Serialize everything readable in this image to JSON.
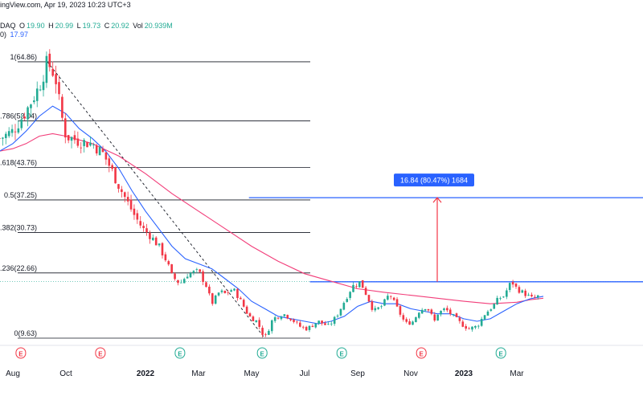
{
  "header": {
    "line1": "ingView.com, Apr 19, 2023 10:23 UTC+3",
    "symbol_suffix": "DAQ",
    "ohlc": [
      {
        "key": "O",
        "value": "19.90"
      },
      {
        "key": "H",
        "value": "20.99"
      },
      {
        "key": "L",
        "value": "19.73"
      },
      {
        "key": "C",
        "value": "20.92"
      },
      {
        "key": "Vol",
        "value": "20.939M"
      }
    ],
    "ma_prefix": "0)",
    "ma_value": "17.97"
  },
  "colors": {
    "up": "#22ab94",
    "down": "#f23645",
    "ma_fast": "#2962ff",
    "ma_slow": "#f23e7a",
    "fib_line": "#131722",
    "target_line": "#2962ff",
    "arrow": "#f23645",
    "measure_box": "#2962ff",
    "earnings_e": "#f23645",
    "earnings_e_up": "#22ab94"
  },
  "measure_label": "16.84 (80.47%) 1684",
  "earnings": [
    {
      "label": "E",
      "type": "down",
      "month_pos": 0.3
    },
    {
      "label": "E",
      "type": "down",
      "month_pos": 3.3
    },
    {
      "label": "E",
      "type": "up",
      "month_pos": 6.3
    },
    {
      "label": "E",
      "type": "up",
      "month_pos": 9.4
    },
    {
      "label": "E",
      "type": "up",
      "month_pos": 12.4
    },
    {
      "label": "E",
      "type": "down",
      "month_pos": 15.4
    },
    {
      "label": "E",
      "type": "up",
      "month_pos": 18.4
    }
  ],
  "chart_data": {
    "type": "candlestick",
    "x_axis": {
      "ticks": [
        "Aug",
        "Oct",
        "2022",
        "Mar",
        "May",
        "Jul",
        "Sep",
        "Nov",
        "2023",
        "Mar"
      ],
      "tick_month_pos": [
        0,
        2,
        5,
        7,
        9,
        11,
        13,
        15,
        17,
        19
      ],
      "note": "month_pos = months since Aug 2021"
    },
    "y_range": [
      9.63,
      68
    ],
    "fib_levels": [
      {
        "label": "1(64.86)",
        "value": 64.86
      },
      {
        "label": ".786(53.04)",
        "value": 53.04
      },
      {
        "label": ".618(43.76)",
        "value": 43.76
      },
      {
        "label": "0.5(37.25)",
        "value": 37.25
      },
      {
        "label": ".382(30.73)",
        "value": 30.73
      },
      {
        "label": ".236(22.66)",
        "value": 22.66
      },
      {
        "label": "0(9.63)",
        "value": 9.63
      }
    ],
    "horizontal_lines": [
      {
        "name": "target",
        "value": 37.7,
        "from_month": 8.9
      },
      {
        "name": "resistance",
        "value": 20.9,
        "from_month": 11.2
      }
    ],
    "last_price": 20.92,
    "trend_line": {
      "from": {
        "month_pos": 1.3,
        "value": 64.86
      },
      "to": {
        "month_pos": 9.5,
        "value": 9.63
      }
    },
    "measure_arrow": {
      "month_pos": 16.0,
      "from": 20.9,
      "to": 37.7,
      "change": 16.84,
      "percent": 80.47
    },
    "series": [
      {
        "name": "Price (approx. closes)",
        "points": [
          [
            -0.5,
            49.5
          ],
          [
            0,
            51
          ],
          [
            0.5,
            55
          ],
          [
            1.0,
            60
          ],
          [
            1.3,
            64.86
          ],
          [
            1.6,
            62
          ],
          [
            1.8,
            55
          ],
          [
            2.0,
            50
          ],
          [
            2.5,
            49
          ],
          [
            3.0,
            48.5
          ],
          [
            3.4,
            46.5
          ],
          [
            3.7,
            43.5
          ],
          [
            4.0,
            40
          ],
          [
            4.3,
            37
          ],
          [
            4.6,
            34
          ],
          [
            4.9,
            31.5
          ],
          [
            5.2,
            30
          ],
          [
            5.5,
            28
          ],
          [
            5.8,
            25
          ],
          [
            6.0,
            22
          ],
          [
            6.3,
            20.5
          ],
          [
            6.6,
            22.5
          ],
          [
            7.0,
            23
          ],
          [
            7.3,
            20
          ],
          [
            7.5,
            16.5
          ],
          [
            7.8,
            19
          ],
          [
            8.0,
            18.5
          ],
          [
            8.3,
            19.5
          ],
          [
            8.6,
            17
          ],
          [
            8.9,
            14
          ],
          [
            9.2,
            13
          ],
          [
            9.5,
            9.63
          ],
          [
            9.8,
            13.5
          ],
          [
            10.2,
            14.5
          ],
          [
            10.5,
            13.5
          ],
          [
            10.8,
            12
          ],
          [
            11.1,
            11.5
          ],
          [
            11.5,
            13
          ],
          [
            11.9,
            12
          ],
          [
            12.2,
            14
          ],
          [
            12.5,
            17
          ],
          [
            12.8,
            20
          ],
          [
            13.1,
            20.9
          ],
          [
            13.4,
            17.5
          ],
          [
            13.6,
            15
          ],
          [
            13.9,
            16
          ],
          [
            14.2,
            18.5
          ],
          [
            14.5,
            15.5
          ],
          [
            14.8,
            12.5
          ],
          [
            15.1,
            13
          ],
          [
            15.3,
            15
          ],
          [
            15.6,
            16
          ],
          [
            15.9,
            13
          ],
          [
            16.0,
            14.5
          ],
          [
            16.3,
            15.5
          ],
          [
            16.6,
            14
          ],
          [
            16.9,
            12.5
          ],
          [
            17.2,
            11.5
          ],
          [
            17.5,
            12
          ],
          [
            17.8,
            14.5
          ],
          [
            18.1,
            16
          ],
          [
            18.3,
            17.5
          ],
          [
            18.5,
            18
          ],
          [
            18.8,
            21
          ],
          [
            19.0,
            19.5
          ],
          [
            19.3,
            18.5
          ],
          [
            19.6,
            17.5
          ],
          [
            19.8,
            18
          ]
        ]
      },
      {
        "name": "MA fast",
        "points": [
          [
            -0.5,
            47
          ],
          [
            0,
            48.5
          ],
          [
            0.5,
            51
          ],
          [
            1.0,
            54
          ],
          [
            1.5,
            56
          ],
          [
            2.0,
            54.5
          ],
          [
            2.5,
            51.5
          ],
          [
            3.0,
            49.5
          ],
          [
            3.5,
            47
          ],
          [
            4.0,
            43.5
          ],
          [
            4.5,
            39
          ],
          [
            5.0,
            35
          ],
          [
            5.5,
            31.5
          ],
          [
            6.0,
            28
          ],
          [
            6.5,
            25.5
          ],
          [
            7.0,
            24.5
          ],
          [
            7.5,
            23.5
          ],
          [
            8.0,
            21.5
          ],
          [
            8.5,
            19.5
          ],
          [
            9.0,
            17
          ],
          [
            9.5,
            15.5
          ],
          [
            10.0,
            14
          ],
          [
            10.5,
            13.5
          ],
          [
            11.0,
            13
          ],
          [
            11.5,
            12.5
          ],
          [
            12.0,
            13
          ],
          [
            12.5,
            14
          ],
          [
            13.0,
            16
          ],
          [
            13.5,
            17
          ],
          [
            14.0,
            16.5
          ],
          [
            14.5,
            16.5
          ],
          [
            15.0,
            15.5
          ],
          [
            15.5,
            15
          ],
          [
            16.0,
            14.5
          ],
          [
            16.5,
            14.5
          ],
          [
            17.0,
            13.5
          ],
          [
            17.5,
            13
          ],
          [
            18.0,
            13.5
          ],
          [
            18.5,
            15
          ],
          [
            19.0,
            16.5
          ],
          [
            19.5,
            17.5
          ],
          [
            20.0,
            18
          ]
        ]
      },
      {
        "name": "MA slow",
        "points": [
          [
            -0.5,
            47
          ],
          [
            0,
            47.5
          ],
          [
            0.5,
            48.5
          ],
          [
            1.0,
            50
          ],
          [
            1.5,
            50.5
          ],
          [
            2.0,
            50
          ],
          [
            3.0,
            48.5
          ],
          [
            4.0,
            46
          ],
          [
            5.0,
            42.5
          ],
          [
            6.0,
            38.5
          ],
          [
            7.0,
            35
          ],
          [
            8.0,
            31.5
          ],
          [
            9.0,
            28
          ],
          [
            10.0,
            25
          ],
          [
            11.0,
            22.5
          ],
          [
            12.0,
            21
          ],
          [
            13.0,
            19.5
          ],
          [
            14.0,
            18.8
          ],
          [
            15.0,
            18.2
          ],
          [
            16.0,
            17.6
          ],
          [
            17.0,
            17
          ],
          [
            18.0,
            16.5
          ],
          [
            19.0,
            16.8
          ],
          [
            19.5,
            17.3
          ],
          [
            20.0,
            17.6
          ]
        ]
      }
    ]
  }
}
